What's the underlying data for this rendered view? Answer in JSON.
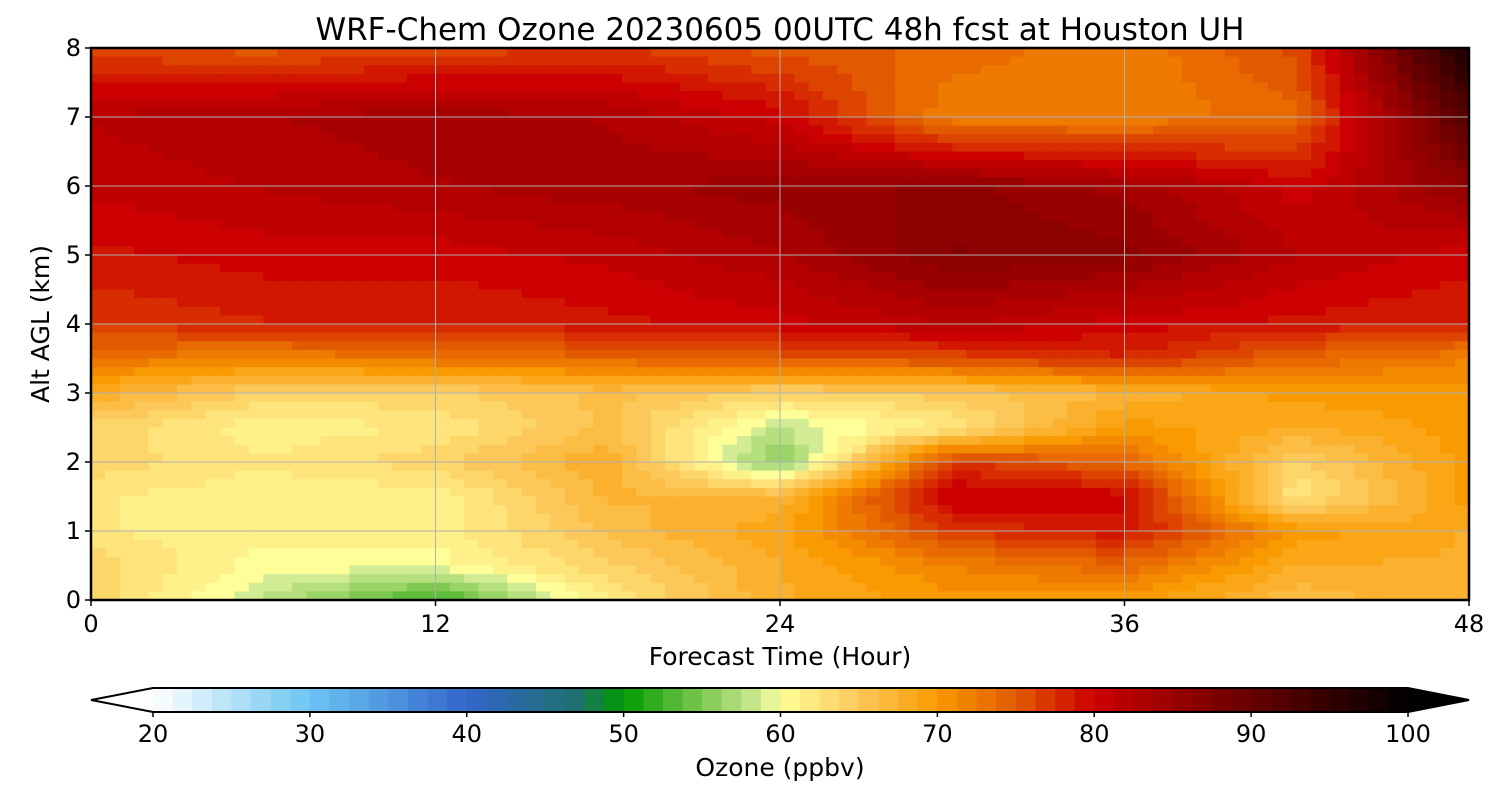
{
  "chart_data": {
    "type": "heatmap",
    "title": "WRF-Chem Ozone  20230605 00UTC 48h fcst at Houston UH",
    "xlabel": "Forecast Time (Hour)",
    "ylabel": "Alt AGL (km)",
    "xlim": [
      0,
      48
    ],
    "ylim": [
      0,
      8
    ],
    "x_ticks": [
      0,
      12,
      24,
      36,
      48
    ],
    "y_ticks": [
      0,
      1,
      2,
      3,
      4,
      5,
      6,
      7,
      8
    ],
    "grid": true,
    "x": [
      0,
      6,
      12,
      18,
      24,
      30,
      36,
      42,
      48
    ],
    "y": [
      0,
      0.5,
      1,
      1.5,
      2,
      2.5,
      3,
      3.5,
      4,
      5,
      6,
      7,
      8
    ],
    "z": [
      [
        64,
        58,
        52,
        62,
        68,
        70,
        70,
        66,
        68
      ],
      [
        64,
        60,
        60,
        64,
        68,
        72,
        74,
        68,
        68
      ],
      [
        62,
        61,
        61,
        66,
        69,
        77,
        79,
        70,
        68
      ],
      [
        62,
        61,
        61,
        67,
        67,
        81,
        80,
        62,
        70
      ],
      [
        64,
        62,
        64,
        68,
        55,
        77,
        74,
        64,
        70
      ],
      [
        64,
        61,
        62,
        66,
        58,
        62,
        70,
        68,
        70
      ],
      [
        68,
        64,
        64,
        66,
        64,
        65,
        67,
        70,
        70
      ],
      [
        73,
        72,
        73,
        74,
        75,
        76,
        78,
        74,
        72
      ],
      [
        77,
        78,
        78,
        79,
        80,
        82,
        80,
        79,
        78
      ],
      [
        79,
        80,
        80,
        81,
        83,
        87,
        86,
        82,
        80
      ],
      [
        81,
        82,
        83,
        84,
        85,
        86,
        84,
        80,
        86
      ],
      [
        82,
        83,
        84,
        83,
        80,
        72,
        72,
        74,
        92
      ],
      [
        76,
        75,
        76,
        77,
        75,
        74,
        72,
        76,
        98
      ]
    ],
    "colorbar": {
      "label": "Ozone  (ppbv)",
      "min": 20,
      "max": 100,
      "ticks": [
        20,
        30,
        40,
        50,
        60,
        70,
        80,
        90,
        100
      ],
      "extend": "both",
      "stops": [
        {
          "v": 20,
          "c": "#ffffff"
        },
        {
          "v": 30,
          "c": "#6cc4f2"
        },
        {
          "v": 40,
          "c": "#3366cc"
        },
        {
          "v": 47,
          "c": "#1f6f6f"
        },
        {
          "v": 50,
          "c": "#009a00"
        },
        {
          "v": 55,
          "c": "#7ec850"
        },
        {
          "v": 59,
          "c": "#d7ee9a"
        },
        {
          "v": 60,
          "c": "#ffff99"
        },
        {
          "v": 65,
          "c": "#fcc85a"
        },
        {
          "v": 70,
          "c": "#f99a00"
        },
        {
          "v": 75,
          "c": "#e25a00"
        },
        {
          "v": 80,
          "c": "#cc0000"
        },
        {
          "v": 90,
          "c": "#660000"
        },
        {
          "v": 100,
          "c": "#000000"
        }
      ]
    }
  }
}
